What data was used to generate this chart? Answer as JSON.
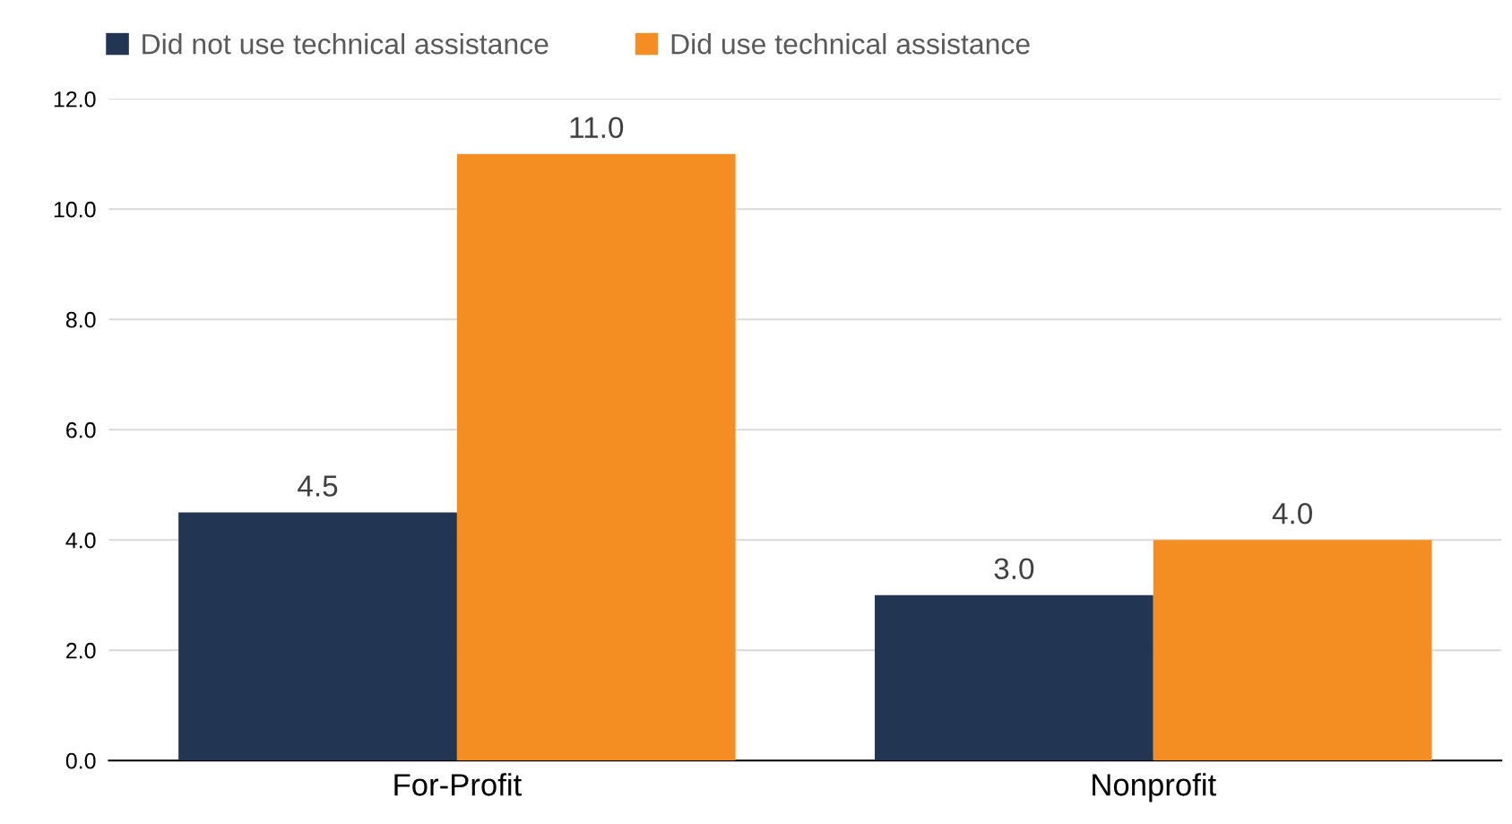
{
  "chart_data": {
    "type": "bar",
    "categories": [
      "For-Profit",
      "Nonprofit"
    ],
    "series": [
      {
        "name": "Did not use technical assistance",
        "color": "#223654",
        "values": [
          4.5,
          3.0
        ],
        "value_labels": [
          "4.5",
          "3.0"
        ]
      },
      {
        "name": "Did use technical assistance",
        "color": "#f58e22",
        "values": [
          11.0,
          4.0
        ],
        "value_labels": [
          "11.0",
          "4.0"
        ]
      }
    ],
    "ylim": [
      0,
      12
    ],
    "yticks": [
      {
        "value": 0,
        "label": "0.0"
      },
      {
        "value": 2,
        "label": "2.0"
      },
      {
        "value": 4,
        "label": "4.0"
      },
      {
        "value": 6,
        "label": "6.0"
      },
      {
        "value": 8,
        "label": "8.0"
      },
      {
        "value": 10,
        "label": "10.0"
      },
      {
        "value": 12,
        "label": "12.0"
      }
    ],
    "grid": "y",
    "legend": "top"
  }
}
